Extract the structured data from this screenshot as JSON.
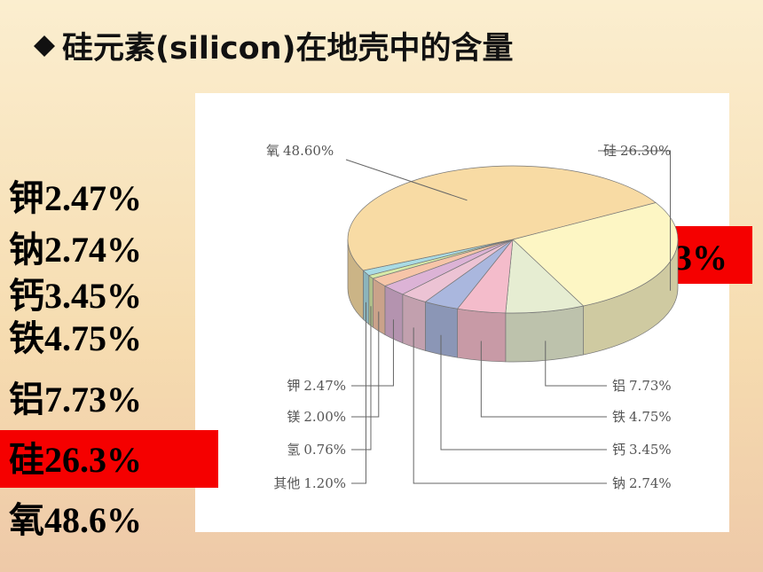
{
  "title": "硅元素(silicon)在地壳中的含量",
  "left_list": [
    "钾2.47%",
    "钠2.74%",
    "钙3.45%",
    "铁4.75%",
    "铝7.73%",
    "硅26.3%",
    "氧48.6%"
  ],
  "callout": "硅26.3%",
  "chart_data": {
    "type": "pie",
    "categories": [
      "硅",
      "铝",
      "铁",
      "钙",
      "钠",
      "钾",
      "镁",
      "氢",
      "其他",
      "氧"
    ],
    "values": [
      26.3,
      7.73,
      4.75,
      3.45,
      2.74,
      2.47,
      2.0,
      0.76,
      1.2,
      48.6
    ],
    "value_labels": [
      "26.30%",
      "7.73%",
      "4.75%",
      "3.45%",
      "2.74%",
      "2.47%",
      "2.00%",
      "0.76%",
      "1.20%",
      "48.60%"
    ],
    "colors": [
      "#fdf6c4",
      "#e6edd2",
      "#f4bccb",
      "#aab7de",
      "#ecc3d4",
      "#dcb3d6",
      "#f6c5a8",
      "#d6eaa8",
      "#a9dbe4",
      "#f8dba4"
    ]
  }
}
